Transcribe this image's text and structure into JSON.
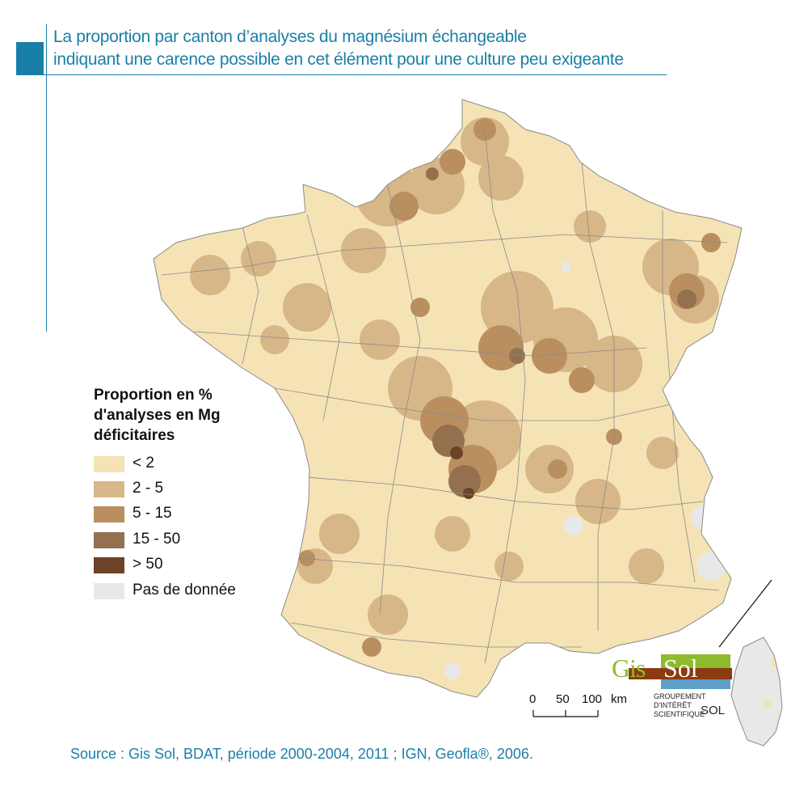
{
  "title": {
    "line1": "La proportion par canton d’analyses du magnésium échangeable",
    "line2": "indiquant une carence possible en cet élément pour une culture peu exigeante"
  },
  "legend": {
    "title_lines": [
      "Proportion en %",
      "d'analyses en Mg",
      "déficitaires"
    ],
    "items": [
      {
        "label": "< 2",
        "color": "#f5e3b5"
      },
      {
        "label": "2 - 5",
        "color": "#d7b688"
      },
      {
        "label": "5 - 15",
        "color": "#b98f60"
      },
      {
        "label": "15 - 50",
        "color": "#94704f"
      },
      {
        "label": "> 50",
        "color": "#6e4226"
      },
      {
        "label": "Pas de donnée",
        "color": "#e8e8e8"
      }
    ]
  },
  "scale_bar": {
    "ticks": [
      "0",
      "50",
      "100"
    ],
    "unit": "km"
  },
  "logo": {
    "gis": "Gis",
    "sol": "Sol",
    "line1": "GROUPEMENT",
    "line2": "D'INTÉRÊT",
    "line3": "SCIENTIFIQUE",
    "line3_sol": "SOL",
    "colors": {
      "green": "#8dbb2b",
      "brown": "#8b3a12",
      "blue": "#5f9fc8"
    }
  },
  "source": "Source : Gis Sol, BDAT, période 2000-2004, 2011 ; IGN, Geofla®, 2006."
}
